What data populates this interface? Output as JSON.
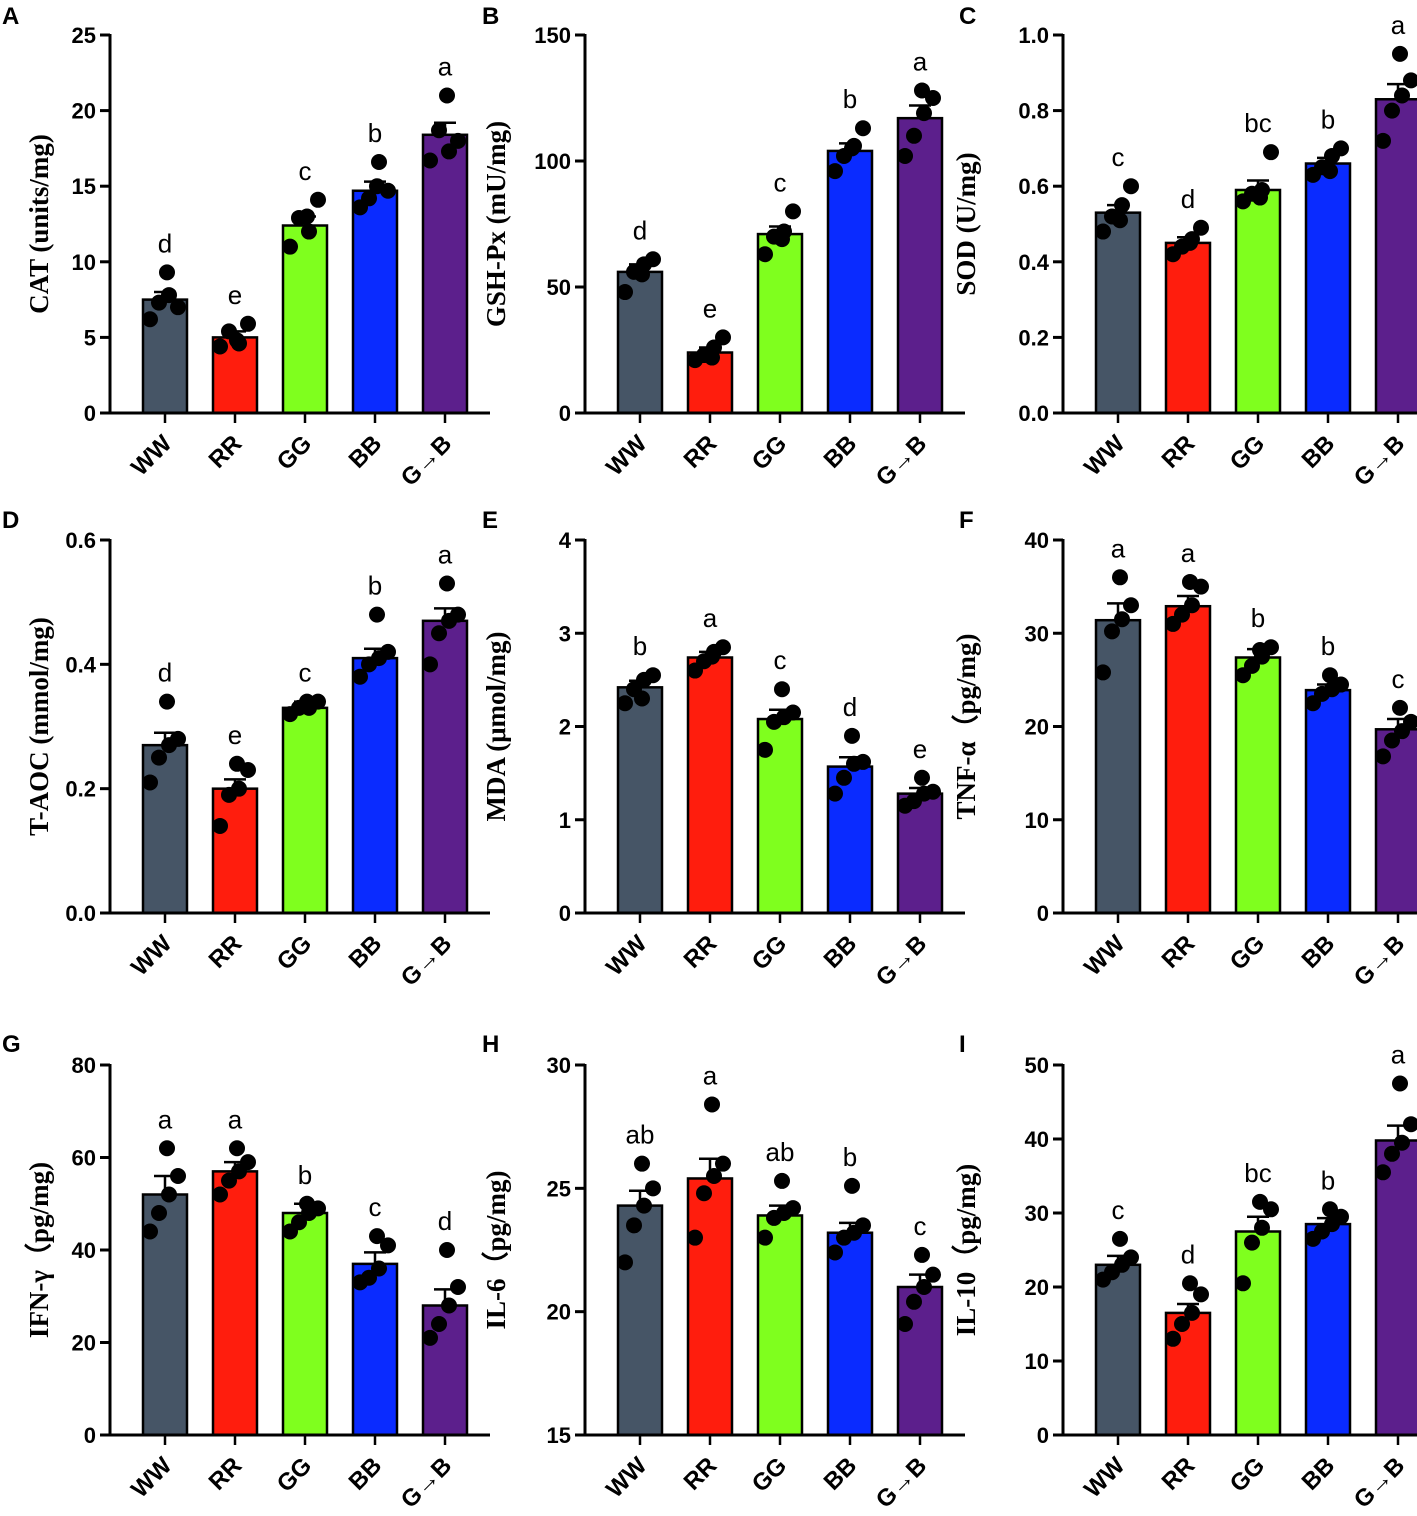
{
  "colors": {
    "WW": "#465566",
    "RR": "#ff1d0d",
    "GG": "#7fff1e",
    "BB": "#0a2bff",
    "G→B": "#5c1f8c",
    "point": "#000000",
    "axis": "#000000"
  },
  "chart_data": [
    {
      "panel": "A",
      "type": "bar",
      "title": "",
      "ylabel": "CAT (units/mg)",
      "xlabel": "",
      "categories": [
        "WW",
        "RR",
        "GG",
        "BB",
        "G→B"
      ],
      "ylim": [
        0,
        25
      ],
      "yticks": [
        0,
        5,
        10,
        15,
        20,
        25
      ],
      "ytick_labels": [
        "0",
        "5",
        "10",
        "15",
        "20",
        "25"
      ],
      "values": [
        7.5,
        5.0,
        12.4,
        14.7,
        18.4
      ],
      "sem": [
        0.5,
        0.4,
        0.6,
        0.6,
        0.8
      ],
      "letters": [
        "d",
        "e",
        "c",
        "b",
        "a"
      ],
      "points": [
        [
          6.2,
          7.3,
          7.8,
          7.0,
          9.3
        ],
        [
          4.4,
          5.4,
          4.6,
          5.9,
          4.8
        ],
        [
          11.0,
          12.9,
          12.0,
          14.1,
          13.0
        ],
        [
          13.6,
          14.2,
          16.6,
          14.7,
          15.0
        ],
        [
          16.7,
          18.7,
          17.3,
          18.0,
          21.0
        ]
      ]
    },
    {
      "panel": "B",
      "type": "bar",
      "title": "",
      "ylabel": "GSH-Px (mU/mg)",
      "xlabel": "",
      "categories": [
        "WW",
        "RR",
        "GG",
        "BB",
        "G→B"
      ],
      "ylim": [
        0,
        150
      ],
      "yticks": [
        0,
        50,
        100,
        150
      ],
      "ytick_labels": [
        "0",
        "50",
        "100",
        "150"
      ],
      "values": [
        56,
        24,
        71,
        104,
        117
      ],
      "sem": [
        3,
        2,
        3,
        3,
        5
      ],
      "letters": [
        "d",
        "e",
        "c",
        "b",
        "a"
      ],
      "points": [
        [
          48,
          56,
          59,
          61,
          55
        ],
        [
          21,
          23,
          26,
          30,
          22
        ],
        [
          63,
          70,
          72,
          80,
          69
        ],
        [
          96,
          102,
          106,
          113,
          105
        ],
        [
          102,
          110,
          119,
          125,
          128
        ]
      ]
    },
    {
      "panel": "C",
      "type": "bar",
      "title": "",
      "ylabel": "SOD (U/mg)",
      "xlabel": "",
      "categories": [
        "WW",
        "RR",
        "GG",
        "BB",
        "G→B"
      ],
      "ylim": [
        0,
        1.0
      ],
      "yticks": [
        0,
        0.2,
        0.4,
        0.6,
        0.8,
        1.0
      ],
      "ytick_labels": [
        "0.0",
        "0.2",
        "0.4",
        "0.6",
        "0.8",
        "1.0"
      ],
      "values": [
        0.53,
        0.45,
        0.59,
        0.66,
        0.83
      ],
      "sem": [
        0.02,
        0.015,
        0.025,
        0.015,
        0.04
      ],
      "letters": [
        "c",
        "d",
        "bc",
        "b",
        "a"
      ],
      "points": [
        [
          0.48,
          0.52,
          0.55,
          0.6,
          0.51
        ],
        [
          0.42,
          0.44,
          0.46,
          0.49,
          0.45
        ],
        [
          0.56,
          0.58,
          0.59,
          0.69,
          0.57
        ],
        [
          0.63,
          0.65,
          0.68,
          0.7,
          0.64
        ],
        [
          0.72,
          0.8,
          0.84,
          0.88,
          0.95
        ]
      ]
    },
    {
      "panel": "D",
      "type": "bar",
      "title": "",
      "ylabel": "T-AOC (mmol/mg)",
      "xlabel": "",
      "categories": [
        "WW",
        "RR",
        "GG",
        "BB",
        "G→B"
      ],
      "ylim": [
        0,
        0.6
      ],
      "yticks": [
        0,
        0.2,
        0.4,
        0.6
      ],
      "ytick_labels": [
        "0.0",
        "0.2",
        "0.4",
        "0.6"
      ],
      "values": [
        0.27,
        0.2,
        0.33,
        0.41,
        0.47
      ],
      "sem": [
        0.02,
        0.015,
        0.01,
        0.015,
        0.02
      ],
      "letters": [
        "d",
        "e",
        "c",
        "b",
        "a"
      ],
      "points": [
        [
          0.21,
          0.25,
          0.27,
          0.28,
          0.34
        ],
        [
          0.14,
          0.19,
          0.2,
          0.23,
          0.24
        ],
        [
          0.32,
          0.33,
          0.33,
          0.34,
          0.34
        ],
        [
          0.38,
          0.4,
          0.41,
          0.42,
          0.48
        ],
        [
          0.4,
          0.45,
          0.47,
          0.48,
          0.53
        ]
      ]
    },
    {
      "panel": "E",
      "type": "bar",
      "title": "",
      "ylabel": "MDA (μmol/mg)",
      "xlabel": "",
      "categories": [
        "WW",
        "RR",
        "GG",
        "BB",
        "G→B"
      ],
      "ylim": [
        0,
        4
      ],
      "yticks": [
        0,
        1,
        2,
        3,
        4
      ],
      "ytick_labels": [
        "0",
        "1",
        "2",
        "3",
        "4"
      ],
      "values": [
        2.42,
        2.74,
        2.08,
        1.57,
        1.28
      ],
      "sem": [
        0.07,
        0.06,
        0.1,
        0.1,
        0.06
      ],
      "letters": [
        "b",
        "a",
        "c",
        "d",
        "e"
      ],
      "points": [
        [
          2.25,
          2.4,
          2.5,
          2.55,
          2.3
        ],
        [
          2.6,
          2.7,
          2.8,
          2.85,
          2.75
        ],
        [
          1.75,
          2.05,
          2.1,
          2.15,
          2.4
        ],
        [
          1.28,
          1.45,
          1.6,
          1.62,
          1.9
        ],
        [
          1.15,
          1.2,
          1.28,
          1.3,
          1.45
        ]
      ]
    },
    {
      "panel": "F",
      "type": "bar",
      "title": "",
      "ylabel": "TNF-α（pg/mg)",
      "xlabel": "",
      "categories": [
        "WW",
        "RR",
        "GG",
        "BB",
        "G→B"
      ],
      "ylim": [
        0,
        40
      ],
      "yticks": [
        0,
        10,
        20,
        30,
        40
      ],
      "ytick_labels": [
        "0",
        "10",
        "20",
        "30",
        "40"
      ],
      "values": [
        31.4,
        32.9,
        27.4,
        23.9,
        19.7
      ],
      "sem": [
        1.8,
        1.1,
        0.9,
        0.6,
        1.1
      ],
      "letters": [
        "a",
        "a",
        "b",
        "b",
        "c"
      ],
      "points": [
        [
          25.8,
          30.2,
          31.5,
          33.0,
          36.0
        ],
        [
          31.0,
          32.0,
          33.0,
          35.0,
          35.5
        ],
        [
          25.5,
          26.5,
          27.5,
          28.5,
          28.2
        ],
        [
          22.5,
          23.5,
          24.0,
          24.5,
          25.5
        ],
        [
          16.8,
          18.5,
          19.5,
          20.5,
          22.0
        ]
      ]
    },
    {
      "panel": "G",
      "type": "bar",
      "title": "",
      "ylabel": "IFN-γ（pg/mg)",
      "xlabel": "",
      "categories": [
        "WW",
        "RR",
        "GG",
        "BB",
        "G→B"
      ],
      "ylim": [
        0,
        80
      ],
      "yticks": [
        0,
        20,
        40,
        60,
        80
      ],
      "ytick_labels": [
        "0",
        "20",
        "40",
        "60",
        "80"
      ],
      "values": [
        52,
        57,
        48,
        37,
        28
      ],
      "sem": [
        4,
        2,
        2,
        2.5,
        3.5
      ],
      "letters": [
        "a",
        "a",
        "b",
        "c",
        "d"
      ],
      "points": [
        [
          44,
          48,
          52,
          56,
          62
        ],
        [
          52,
          55,
          57,
          59,
          62
        ],
        [
          44,
          46,
          48,
          49,
          50
        ],
        [
          33,
          34,
          36,
          41,
          43
        ],
        [
          21,
          24,
          28,
          32,
          40
        ]
      ]
    },
    {
      "panel": "H",
      "type": "bar",
      "title": "",
      "ylabel": "IL-6（pg/mg)",
      "xlabel": "",
      "categories": [
        "WW",
        "RR",
        "GG",
        "BB",
        "G→B"
      ],
      "ylim": [
        15,
        30
      ],
      "yticks": [
        15,
        20,
        25,
        30
      ],
      "ytick_labels": [
        "15",
        "20",
        "25",
        "30"
      ],
      "values": [
        24.3,
        25.4,
        23.9,
        23.2,
        21.0
      ],
      "sem": [
        0.6,
        0.8,
        0.4,
        0.4,
        0.5
      ],
      "letters": [
        "ab",
        "a",
        "ab",
        "b",
        "c"
      ],
      "points": [
        [
          22.0,
          23.5,
          24.3,
          25.0,
          26.0
        ],
        [
          23.0,
          24.8,
          25.5,
          26.0,
          28.4
        ],
        [
          23.0,
          23.8,
          24.0,
          24.2,
          25.3
        ],
        [
          22.4,
          23.0,
          23.2,
          23.5,
          25.1
        ],
        [
          19.5,
          20.4,
          21.0,
          21.5,
          22.3
        ]
      ]
    },
    {
      "panel": "I",
      "type": "bar",
      "title": "",
      "ylabel": "IL-10（pg/mg)",
      "xlabel": "",
      "categories": [
        "WW",
        "RR",
        "GG",
        "BB",
        "G→B"
      ],
      "ylim": [
        0,
        50
      ],
      "yticks": [
        0,
        10,
        20,
        30,
        40,
        50
      ],
      "ytick_labels": [
        "0",
        "10",
        "20",
        "30",
        "40",
        "50"
      ],
      "values": [
        23,
        16.5,
        27.5,
        28.5,
        39.8
      ],
      "sem": [
        1.2,
        1.2,
        2.0,
        0.8,
        2.0
      ],
      "letters": [
        "c",
        "d",
        "bc",
        "b",
        "a"
      ],
      "points": [
        [
          21.0,
          22.0,
          23.0,
          24.0,
          26.5
        ],
        [
          13.0,
          15.0,
          16.5,
          19.0,
          20.5
        ],
        [
          20.5,
          26.0,
          28.0,
          30.5,
          31.5
        ],
        [
          26.5,
          27.5,
          28.5,
          29.5,
          30.5
        ],
        [
          35.5,
          38.0,
          39.5,
          42.0,
          47.5
        ]
      ]
    }
  ]
}
